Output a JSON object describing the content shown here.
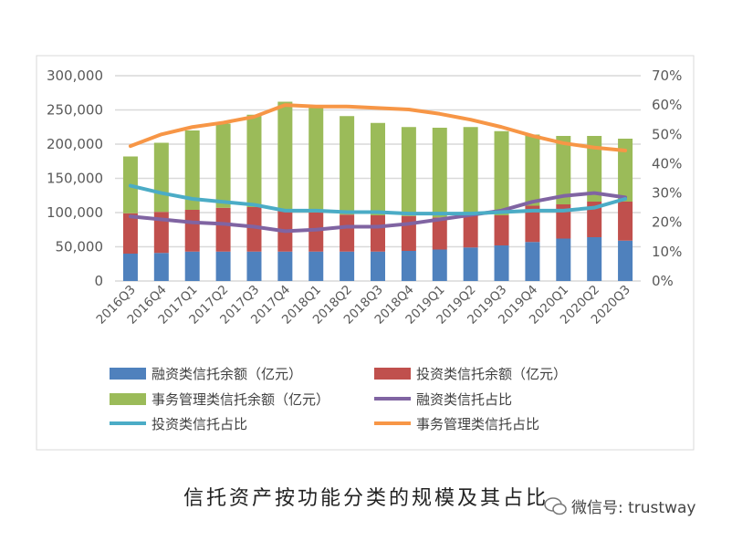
{
  "chart_data": {
    "type": "bar",
    "title": "信托资产按功能分类的规模及其占比",
    "categories": [
      "2016Q3",
      "2016Q4",
      "2017Q1",
      "2017Q2",
      "2017Q3",
      "2017Q4",
      "2018Q1",
      "2018Q2",
      "2018Q3",
      "2018Q4",
      "2019Q1",
      "2019Q2",
      "2019Q3",
      "2019Q4",
      "2020Q1",
      "2020Q2",
      "2020Q3"
    ],
    "y_left": {
      "ylim": [
        0,
        300000
      ],
      "ticks": [
        "0",
        "50,000",
        "100,000",
        "150,000",
        "200,000",
        "250,000",
        "300,000"
      ]
    },
    "y_right": {
      "ylim": [
        0,
        70
      ],
      "ticks": [
        "0%",
        "10%",
        "20%",
        "30%",
        "40%",
        "50%",
        "60%",
        "70%"
      ]
    },
    "bar_series": [
      {
        "name": "融资类信托余额（亿元）",
        "color": "#4f81bd",
        "values": [
          40000,
          41000,
          43000,
          43000,
          43000,
          43000,
          43000,
          43000,
          43000,
          44000,
          46000,
          49000,
          52000,
          57000,
          62000,
          64000,
          59000
        ]
      },
      {
        "name": "投资类信托余额（亿元）",
        "color": "#c0504d",
        "values": [
          59000,
          60000,
          61000,
          64000,
          65000,
          62000,
          57000,
          54000,
          53000,
          51000,
          47000,
          47000,
          44000,
          53000,
          50000,
          52000,
          57000
        ]
      },
      {
        "name": "事务管理类信托余额（亿元）",
        "color": "#9bbb59",
        "values": [
          83000,
          101000,
          116000,
          123000,
          135000,
          157000,
          153000,
          144000,
          135000,
          130000,
          131000,
          129000,
          123000,
          104000,
          100000,
          96000,
          92000
        ]
      }
    ],
    "line_series": [
      {
        "name": "融资类信托占比",
        "color": "#8064a2",
        "values": [
          22,
          21,
          20,
          19.5,
          18.5,
          17,
          17.5,
          18.5,
          18.5,
          19.5,
          21,
          22.5,
          24,
          27,
          29,
          30,
          28.5
        ]
      },
      {
        "name": "投资类信托占比",
        "color": "#4bacc6",
        "values": [
          32.5,
          30,
          28,
          27,
          26,
          24,
          24,
          23.5,
          23.5,
          23,
          23,
          23,
          23.5,
          24,
          24,
          25,
          28
        ]
      },
      {
        "name": "事务管理类信托占比",
        "color": "#f79646",
        "values": [
          46,
          50,
          52.5,
          54,
          56,
          60,
          59.5,
          59.5,
          59,
          58.5,
          57,
          55,
          52.5,
          49.5,
          47,
          45.5,
          44.5
        ]
      }
    ],
    "legend_placement": "bottom",
    "grid": true
  },
  "watermark": "微信号: trustway"
}
